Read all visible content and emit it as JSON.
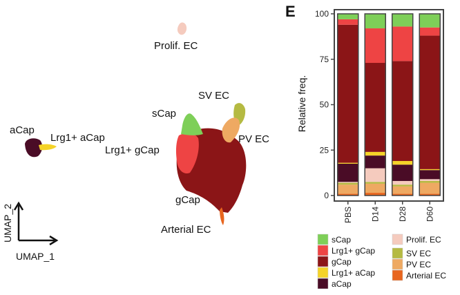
{
  "umap": {
    "x_label": "UMAP_1",
    "y_label": "UMAP_2",
    "clusters": [
      {
        "name": "aCap",
        "color": "#4a0c26"
      },
      {
        "name": "Lrg1+ aCap",
        "color": "#f5d328"
      },
      {
        "name": "sCap",
        "color": "#7ecf58"
      },
      {
        "name": "Lrg1+ gCap",
        "color": "#ee4444"
      },
      {
        "name": "gCap",
        "color": "#8b1517"
      },
      {
        "name": "Prolif. EC",
        "color": "#f5cbbe"
      },
      {
        "name": "SV EC",
        "color": "#b5ba42"
      },
      {
        "name": "PV EC",
        "color": "#eea962"
      },
      {
        "name": "Arterial EC",
        "color": "#e8661f"
      }
    ]
  },
  "chart_data": {
    "type": "bar",
    "stacked": true,
    "panel_label": "E",
    "title": "",
    "xlabel": "",
    "ylabel": "Relative  freq.",
    "ylim": [
      0,
      100
    ],
    "yticks": [
      0,
      25,
      50,
      75,
      100
    ],
    "categories": [
      "PBS",
      "D14",
      "D28",
      "D60"
    ],
    "series": [
      {
        "name": "Arterial EC",
        "color": "#e8661f",
        "values": [
          1,
          1.5,
          1,
          1
        ]
      },
      {
        "name": "PV EC",
        "color": "#eea962",
        "values": [
          5,
          5,
          4,
          6
        ]
      },
      {
        "name": "SV EC",
        "color": "#b5ba42",
        "values": [
          1,
          1,
          1,
          1
        ]
      },
      {
        "name": "Prolif. EC",
        "color": "#f5cbbe",
        "values": [
          0.5,
          7.5,
          2,
          1
        ]
      },
      {
        "name": "aCap",
        "color": "#4a0c26",
        "values": [
          10,
          7,
          9,
          5
        ]
      },
      {
        "name": "Lrg1+ aCap",
        "color": "#f5d328",
        "values": [
          0.5,
          2,
          2,
          0.5
        ]
      },
      {
        "name": "gCap",
        "color": "#8b1517",
        "values": [
          76,
          49,
          55,
          73.5
        ]
      },
      {
        "name": "Lrg1+ gCap",
        "color": "#ee4444",
        "values": [
          3,
          19,
          19,
          4.5
        ]
      },
      {
        "name": "sCap",
        "color": "#7ecf58",
        "values": [
          3,
          8,
          7,
          7.5
        ]
      }
    ],
    "legend": {
      "position": "bottom",
      "columns": [
        [
          "sCap",
          "Lrg1+ gCap",
          "gCap",
          "Lrg1+ aCap",
          "aCap"
        ],
        [
          "Prolif. EC",
          "SV EC",
          "PV EC",
          "Arterial EC"
        ]
      ]
    }
  }
}
